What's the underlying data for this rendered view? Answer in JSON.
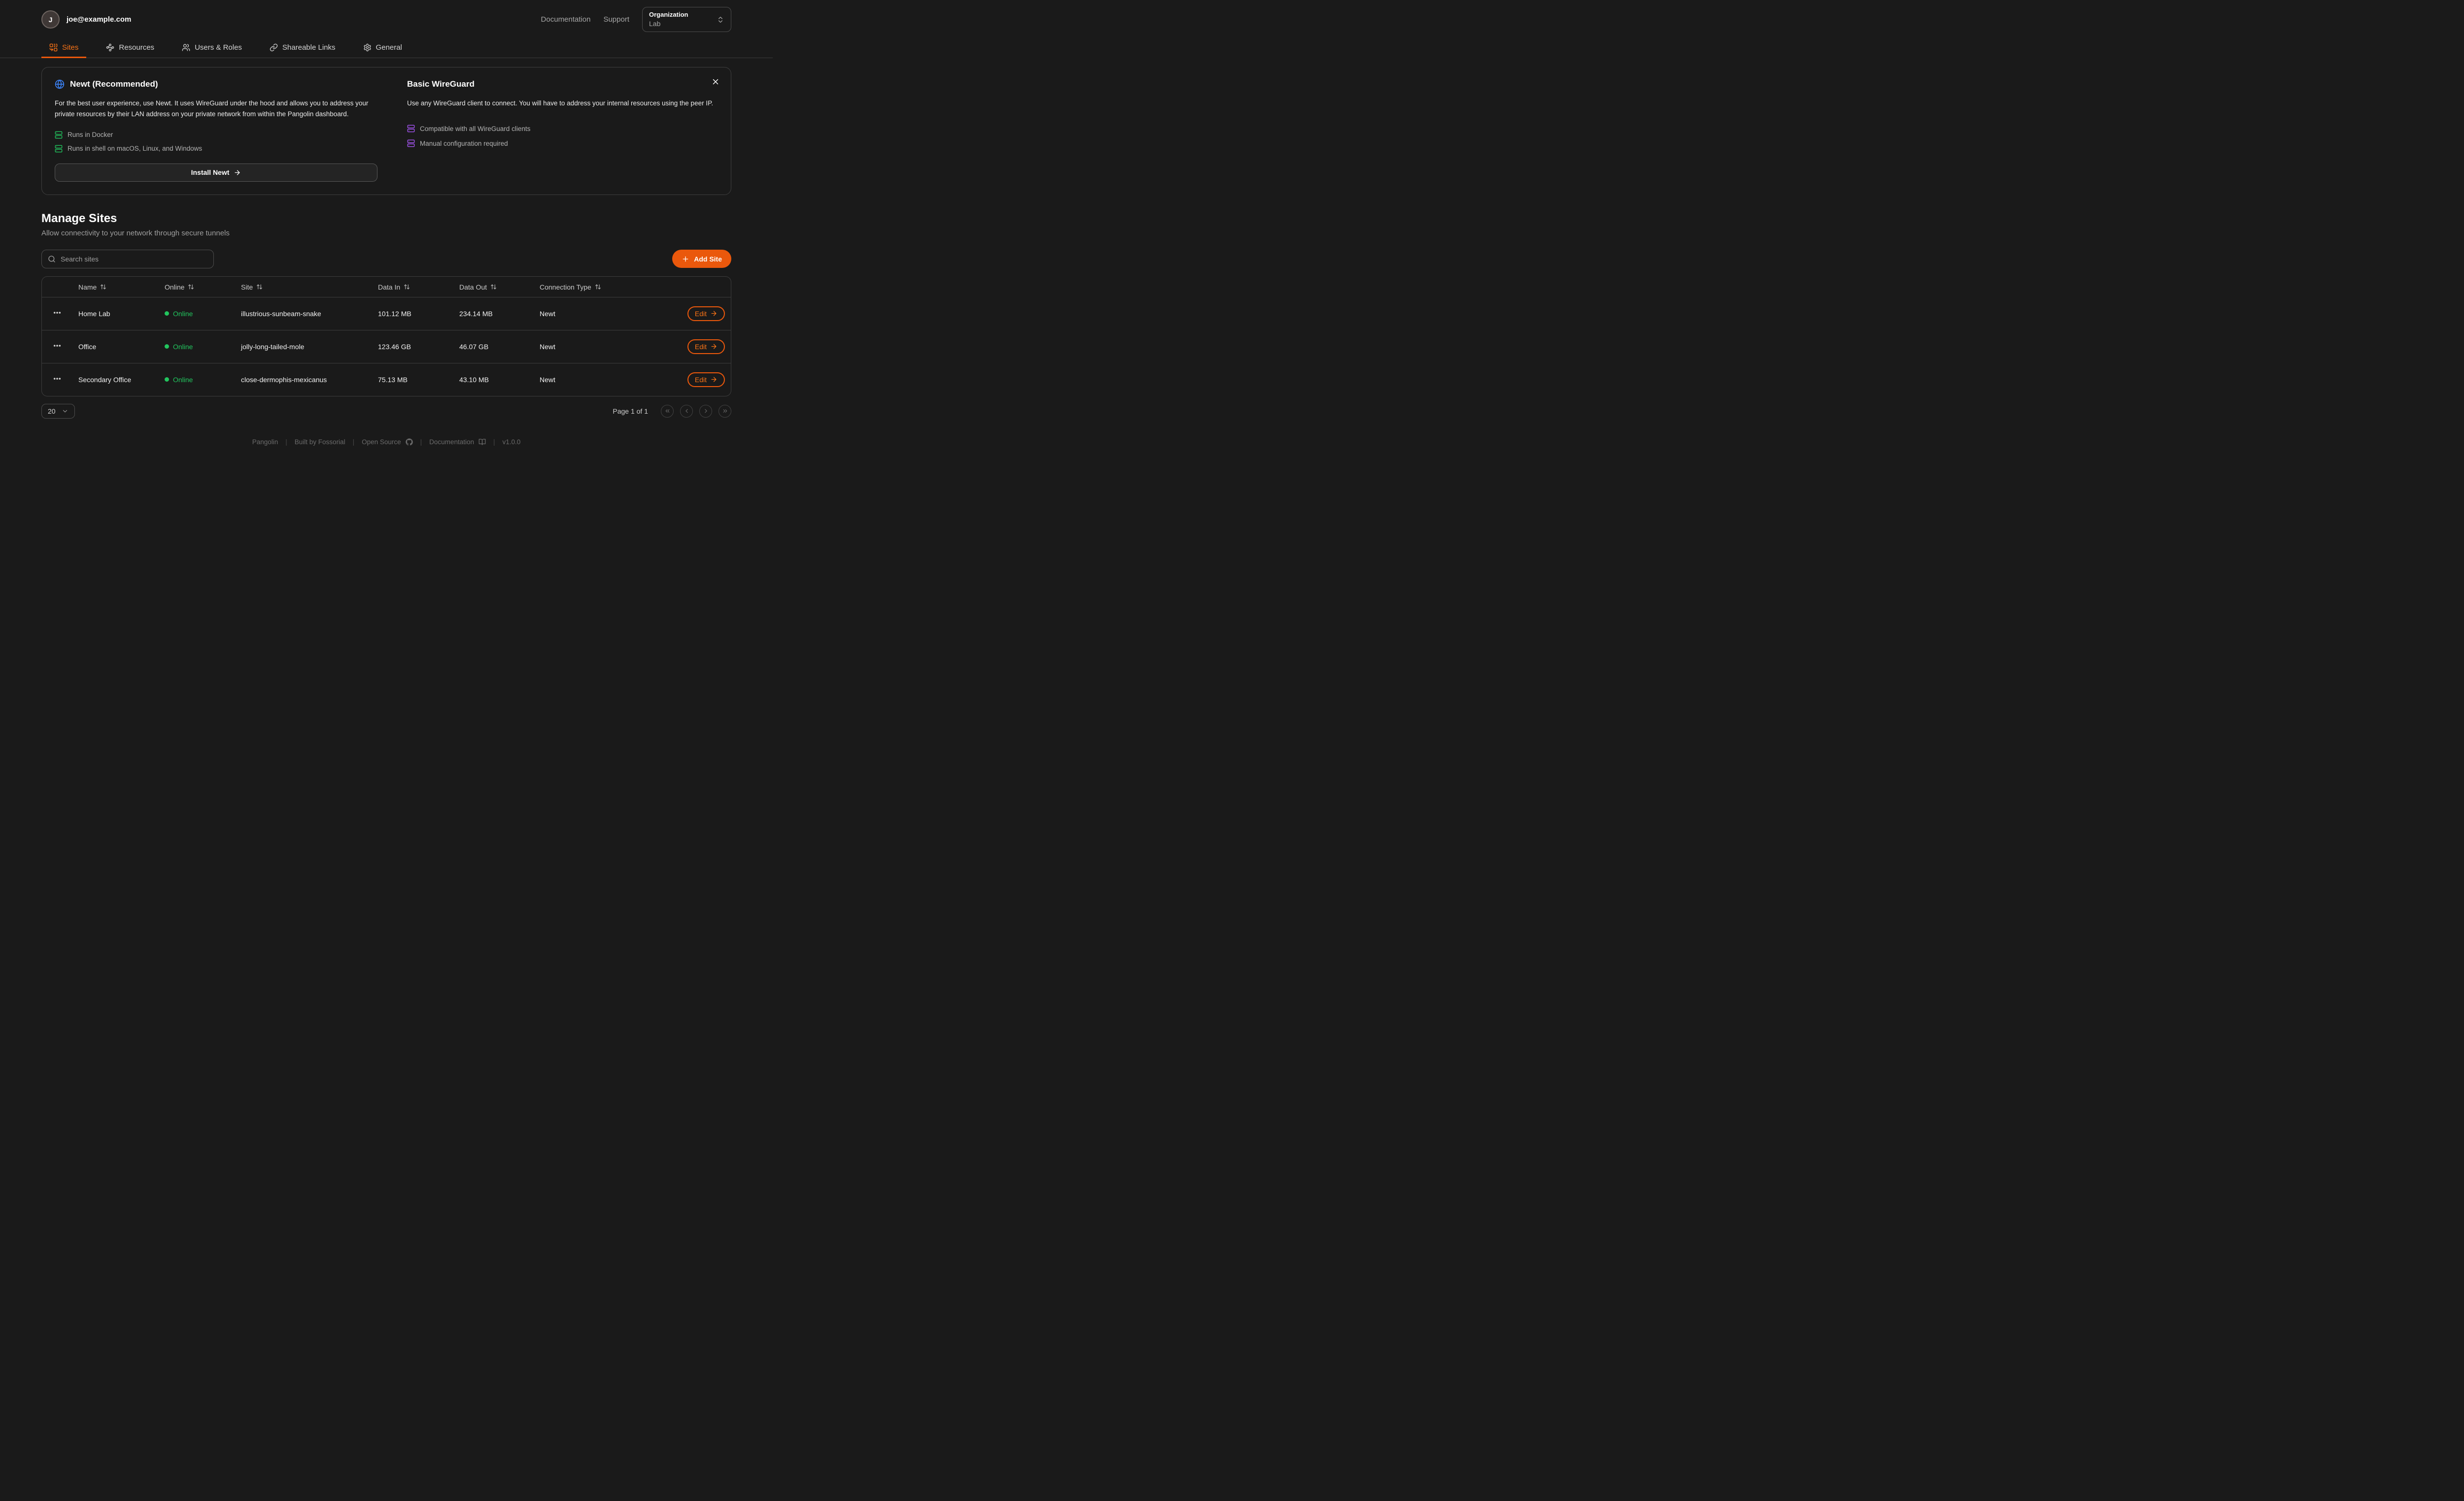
{
  "header": {
    "avatar_initial": "J",
    "email": "joe@example.com",
    "links": [
      {
        "label": "Documentation"
      },
      {
        "label": "Support"
      }
    ],
    "org_picker": {
      "label": "Organization",
      "value": "Lab"
    }
  },
  "tabs": [
    {
      "label": "Sites",
      "icon": "combine",
      "active": true
    },
    {
      "label": "Resources",
      "icon": "waypoints",
      "active": false
    },
    {
      "label": "Users & Roles",
      "icon": "users",
      "active": false
    },
    {
      "label": "Shareable Links",
      "icon": "link",
      "active": false
    },
    {
      "label": "General",
      "icon": "gear",
      "active": false
    }
  ],
  "onboarding": {
    "newt": {
      "title": "Newt (Recommended)",
      "description": "For the best user experience, use Newt. It uses WireGuard under the hood and allows you to address your private resources by their LAN address on your private network from within the Pangolin dashboard.",
      "features": [
        "Runs in Docker",
        "Runs in shell on macOS, Linux, and Windows"
      ],
      "button_label": "Install Newt"
    },
    "wireguard": {
      "title": "Basic WireGuard",
      "description": "Use any WireGuard client to connect. You will have to address your internal resources using the peer IP.",
      "features": [
        "Compatible with all WireGuard clients",
        "Manual configuration required"
      ]
    }
  },
  "manage_sites": {
    "title": "Manage Sites",
    "subtitle": "Allow connectivity to your network through secure tunnels",
    "search_placeholder": "Search sites",
    "add_button": "Add Site"
  },
  "table": {
    "columns": [
      "Name",
      "Online",
      "Site",
      "Data In",
      "Data Out",
      "Connection Type"
    ],
    "rows": [
      {
        "name": "Home Lab",
        "status": "Online",
        "site": "illustrious-sunbeam-snake",
        "data_in": "101.12 MB",
        "data_out": "234.14 MB",
        "connection_type": "Newt",
        "edit_label": "Edit"
      },
      {
        "name": "Office",
        "status": "Online",
        "site": "jolly-long-tailed-mole",
        "data_in": "123.46 GB",
        "data_out": "46.07 GB",
        "connection_type": "Newt",
        "edit_label": "Edit"
      },
      {
        "name": "Secondary Office",
        "status": "Online",
        "site": "close-dermophis-mexicanus",
        "data_in": "75.13 MB",
        "data_out": "43.10 MB",
        "connection_type": "Newt",
        "edit_label": "Edit"
      }
    ]
  },
  "pagination": {
    "page_size": "20",
    "label": "Page 1 of 1"
  },
  "footer": {
    "items": [
      {
        "label": "Pangolin"
      },
      {
        "label": "Built by Fossorial"
      },
      {
        "label": "Open Source",
        "icon": "github"
      },
      {
        "label": "Documentation",
        "icon": "book-open"
      },
      {
        "label": "v1.0.0"
      }
    ]
  },
  "colors": {
    "accent": "#ea580c",
    "accent_text": "#f97316",
    "online_green": "#22c55e",
    "newt_blue": "#3b82f6",
    "wireguard_purple": "#a855f7"
  }
}
